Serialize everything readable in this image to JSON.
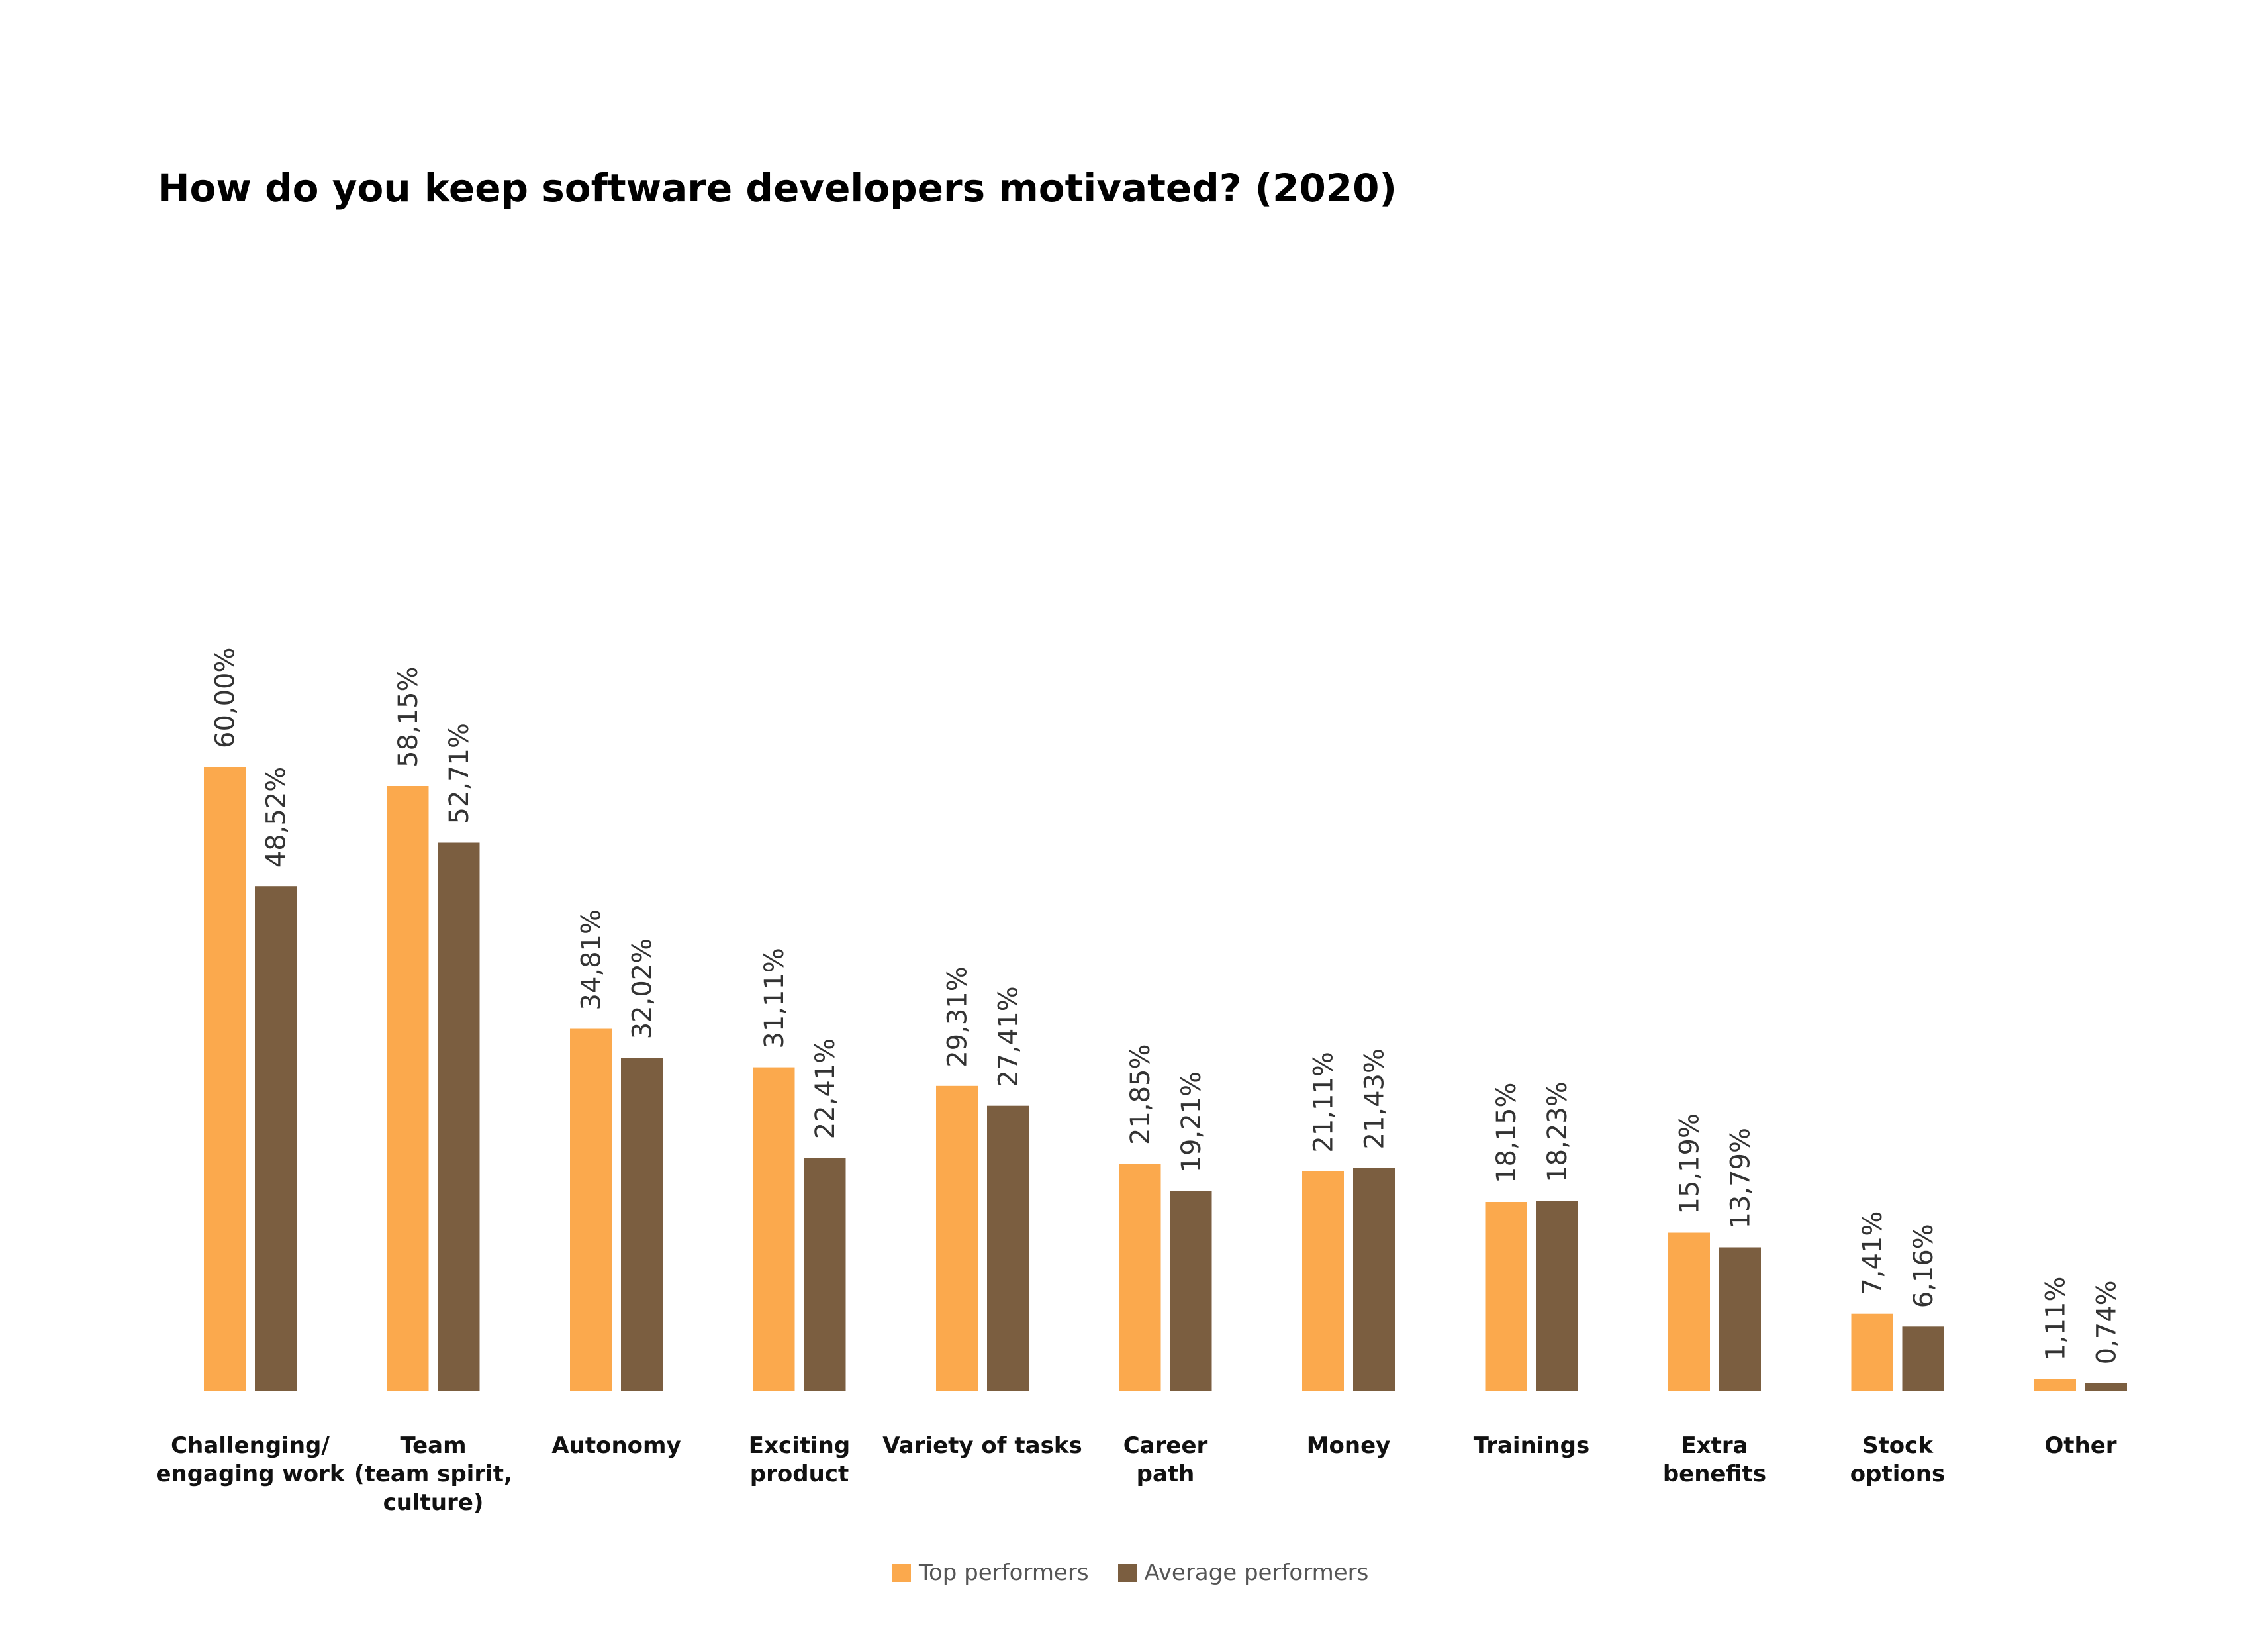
{
  "chart_data": {
    "type": "bar",
    "title": "How do you keep software developers motivated? (2020)",
    "xlabel": "",
    "ylabel": "",
    "ylim": [
      0,
      100
    ],
    "grid": false,
    "legend_position": "bottom",
    "categories": [
      [
        "Challenging/",
        "engaging work"
      ],
      [
        "Team",
        "(team spirit,",
        "culture)"
      ],
      [
        "Autonomy"
      ],
      [
        "Exciting",
        "product"
      ],
      [
        "Variety of tasks"
      ],
      [
        "Career",
        "path"
      ],
      [
        "Money"
      ],
      [
        "Trainings"
      ],
      [
        "Extra",
        "benefits"
      ],
      [
        "Stock",
        "options"
      ],
      [
        "Other"
      ]
    ],
    "series": [
      {
        "name": "Top performers",
        "color": "#FBA94D",
        "values": [
          60.0,
          58.15,
          34.81,
          31.11,
          29.31,
          21.85,
          21.11,
          18.15,
          15.19,
          7.41,
          1.11
        ],
        "labels": [
          "60,00%",
          "58,15%",
          "34,81%",
          "31,11%",
          "29,31%",
          "21,85%",
          "21,11%",
          "18,15%",
          "15,19%",
          "7,41%",
          "1,11%"
        ]
      },
      {
        "name": "Average performers",
        "color": "#7B5E40",
        "values": [
          48.52,
          52.71,
          32.02,
          22.41,
          27.41,
          19.21,
          21.43,
          18.23,
          13.79,
          6.16,
          0.74
        ],
        "labels": [
          "48,52%",
          "52,71%",
          "32,02%",
          "22,41%",
          "27,41%",
          "19,21%",
          "21,43%",
          "18,23%",
          "13,79%",
          "6,16%",
          "0,74%"
        ]
      }
    ]
  }
}
